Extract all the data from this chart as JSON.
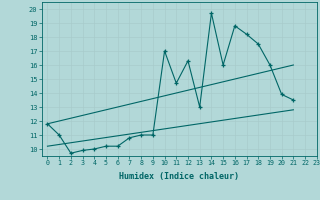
{
  "background_color": "#b2d8d8",
  "grid_color": "#a8cccc",
  "line_color": "#006666",
  "x_values": [
    0,
    1,
    2,
    3,
    4,
    5,
    6,
    7,
    8,
    9,
    10,
    11,
    12,
    13,
    14,
    15,
    16,
    17,
    18,
    19,
    20,
    21
  ],
  "line1": [
    11.8,
    11.0,
    9.7,
    9.9,
    10.0,
    10.2,
    10.2,
    10.8,
    11.0,
    11.0,
    17.0,
    14.7,
    16.3,
    13.0,
    19.7,
    16.0,
    18.8,
    18.2,
    17.5,
    16.0,
    13.9,
    13.5
  ],
  "trend1_x": [
    0,
    21
  ],
  "trend1_y": [
    11.8,
    16.0
  ],
  "trend2_x": [
    0,
    21
  ],
  "trend2_y": [
    10.2,
    12.8
  ],
  "xlabel": "Humidex (Indice chaleur)",
  "xlim": [
    -0.5,
    23.0
  ],
  "ylim": [
    9.5,
    20.5
  ],
  "yticks": [
    10,
    11,
    12,
    13,
    14,
    15,
    16,
    17,
    18,
    19,
    20
  ],
  "xticks": [
    0,
    1,
    2,
    3,
    4,
    5,
    6,
    7,
    8,
    9,
    10,
    11,
    12,
    13,
    14,
    15,
    16,
    17,
    18,
    19,
    20,
    21,
    22,
    23
  ]
}
